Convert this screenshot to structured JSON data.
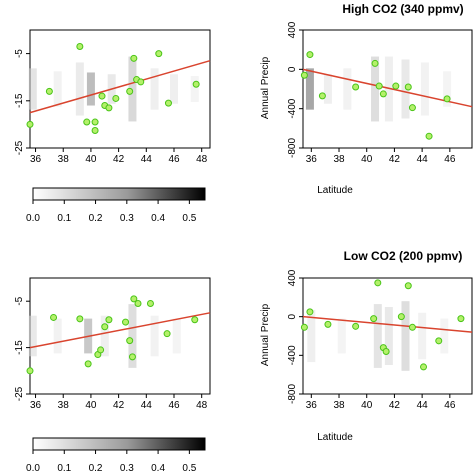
{
  "colors": {
    "point_fill": "#b4f06a",
    "point_stroke": "#49c417",
    "trend": "#d9442e",
    "frame": "#000000"
  },
  "chart_data": [
    {
      "type": "heatmap-scatter",
      "panel": "top-left",
      "title": "",
      "xlabel": "",
      "ylabel": "",
      "xlim": [
        35.6,
        48.6
      ],
      "ylim": [
        -25,
        0
      ],
      "xticks": [
        "36",
        "38",
        "40",
        "42",
        "44",
        "46",
        "48"
      ],
      "yticks": [
        "-5",
        "-15",
        "-25"
      ],
      "grid": false,
      "points": [
        {
          "x": 35.6,
          "y": -20.0
        },
        {
          "x": 37.0,
          "y": -13.0
        },
        {
          "x": 39.2,
          "y": -3.5
        },
        {
          "x": 39.7,
          "y": -19.5
        },
        {
          "x": 40.3,
          "y": -19.5
        },
        {
          "x": 40.3,
          "y": -21.3
        },
        {
          "x": 40.8,
          "y": -14.0
        },
        {
          "x": 41.0,
          "y": -16.0
        },
        {
          "x": 41.3,
          "y": -16.5
        },
        {
          "x": 41.8,
          "y": -14.5
        },
        {
          "x": 42.8,
          "y": -13.0
        },
        {
          "x": 43.1,
          "y": -6.0
        },
        {
          "x": 43.3,
          "y": -10.5
        },
        {
          "x": 43.6,
          "y": -11.0
        },
        {
          "x": 44.9,
          "y": -5.0
        },
        {
          "x": 45.6,
          "y": -15.5
        },
        {
          "x": 47.6,
          "y": -11.5
        }
      ],
      "trend": [
        {
          "x": 35.6,
          "y": -17.5
        },
        {
          "x": 48.6,
          "y": -6.5
        }
      ]
    },
    {
      "type": "heatmap-scatter",
      "panel": "top-right",
      "title": "High CO2 (340 ppmv)",
      "xlabel": "Latitude",
      "ylabel": "Annual Precip",
      "xlim": [
        35.4,
        47.6
      ],
      "ylim": [
        -800,
        400
      ],
      "xticks": [
        "36",
        "38",
        "40",
        "42",
        "44",
        "46"
      ],
      "yticks": [
        "400",
        "0",
        "-400",
        "-800"
      ],
      "grid": false,
      "points": [
        {
          "x": 35.5,
          "y": -60
        },
        {
          "x": 35.9,
          "y": 150
        },
        {
          "x": 36.8,
          "y": -270
        },
        {
          "x": 39.2,
          "y": -180
        },
        {
          "x": 40.6,
          "y": 60
        },
        {
          "x": 40.9,
          "y": -170
        },
        {
          "x": 41.2,
          "y": -250
        },
        {
          "x": 42.1,
          "y": -170
        },
        {
          "x": 43.0,
          "y": -180
        },
        {
          "x": 43.3,
          "y": -390
        },
        {
          "x": 44.5,
          "y": -680
        },
        {
          "x": 45.8,
          "y": -300
        }
      ],
      "trend": [
        {
          "x": 35.4,
          "y": 0
        },
        {
          "x": 47.6,
          "y": -380
        }
      ]
    },
    {
      "type": "heatmap-scatter",
      "panel": "bottom-left",
      "title": "",
      "xlabel": "",
      "ylabel": "",
      "xlim": [
        35.6,
        48.6
      ],
      "ylim": [
        -25,
        0
      ],
      "xticks": [
        "36",
        "38",
        "40",
        "42",
        "44",
        "46",
        "48"
      ],
      "yticks": [
        "-5",
        "-15",
        "-25"
      ],
      "grid": false,
      "points": [
        {
          "x": 35.6,
          "y": -20.0
        },
        {
          "x": 37.3,
          "y": -8.5
        },
        {
          "x": 39.2,
          "y": -8.8
        },
        {
          "x": 39.8,
          "y": -18.5
        },
        {
          "x": 40.5,
          "y": -16.5
        },
        {
          "x": 40.7,
          "y": -15.5
        },
        {
          "x": 41.0,
          "y": -10.5
        },
        {
          "x": 41.3,
          "y": -9.0
        },
        {
          "x": 42.5,
          "y": -9.5
        },
        {
          "x": 42.8,
          "y": -13.5
        },
        {
          "x": 43.1,
          "y": -4.5
        },
        {
          "x": 43.4,
          "y": -5.5
        },
        {
          "x": 43.0,
          "y": -17.0
        },
        {
          "x": 44.3,
          "y": -5.5
        },
        {
          "x": 45.5,
          "y": -12.0
        },
        {
          "x": 47.5,
          "y": -9.0
        }
      ],
      "trend": [
        {
          "x": 35.6,
          "y": -15.0
        },
        {
          "x": 48.6,
          "y": -7.5
        }
      ]
    },
    {
      "type": "heatmap-scatter",
      "panel": "bottom-right",
      "title": "Low CO2 (200 ppmv)",
      "xlabel": "Latitude",
      "ylabel": "Annual Precip",
      "xlim": [
        35.4,
        47.6
      ],
      "ylim": [
        -800,
        400
      ],
      "xticks": [
        "36",
        "38",
        "40",
        "42",
        "44",
        "46"
      ],
      "yticks": [
        "400",
        "0",
        "-400",
        "-800"
      ],
      "grid": false,
      "points": [
        {
          "x": 35.5,
          "y": -110
        },
        {
          "x": 35.9,
          "y": 50
        },
        {
          "x": 37.2,
          "y": -80
        },
        {
          "x": 39.2,
          "y": -100
        },
        {
          "x": 40.5,
          "y": -20
        },
        {
          "x": 40.8,
          "y": 350
        },
        {
          "x": 41.2,
          "y": -320
        },
        {
          "x": 41.4,
          "y": -360
        },
        {
          "x": 42.5,
          "y": 0
        },
        {
          "x": 43.0,
          "y": 320
        },
        {
          "x": 43.3,
          "y": -110
        },
        {
          "x": 44.1,
          "y": -520
        },
        {
          "x": 45.2,
          "y": -250
        },
        {
          "x": 46.8,
          "y": -20
        }
      ],
      "trend": [
        {
          "x": 35.4,
          "y": 0
        },
        {
          "x": 47.6,
          "y": -160
        }
      ]
    }
  ],
  "colorbars": [
    {
      "panel": "top",
      "range": [
        0,
        0.55
      ],
      "ticks": [
        "0.0",
        "0.1",
        "0.2",
        "0.3",
        "0.4",
        "0.5"
      ]
    },
    {
      "panel": "bottom",
      "range": [
        0,
        0.55
      ],
      "ticks": [
        "0.0",
        "0.1",
        "0.2",
        "0.3",
        "0.4",
        "0.5"
      ]
    }
  ]
}
